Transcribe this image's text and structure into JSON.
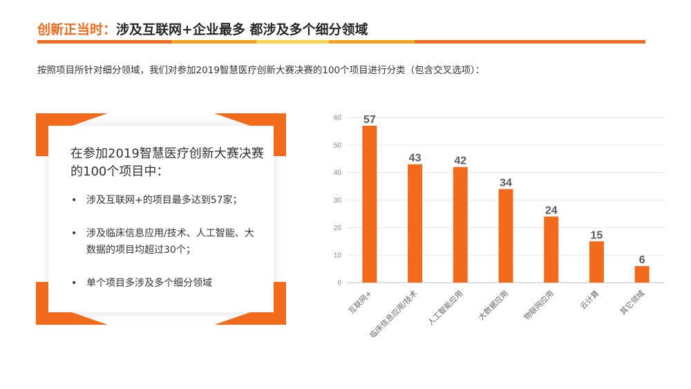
{
  "header": {
    "title_accent": "创新正当时：",
    "title_rest": "涉及互联网+企业最多 都涉及多个细分领域",
    "bar_colors": [
      "#f26b1d",
      "#f7a21b",
      "#fcd34d",
      "#f7a21b",
      "#f26b1d"
    ]
  },
  "subtitle": "按照项目所针对细分领域，我们对参加2019智慧医疗创新大赛决赛的100个项目进行分类（包含交叉选项）：",
  "card": {
    "heading": "在参加2019智慧医疗创新大赛决赛的100个项目中：",
    "bullets": [
      {
        "dot": "•",
        "text": "涉及互联网+的项目最多达到57家；"
      },
      {
        "dot": "•",
        "text": "涉及临床信息应用/技术、人工智能、大数据的项目均超过30个；"
      },
      {
        "dot": "•",
        "text": "单个项目多涉及多个细分领域"
      }
    ],
    "frame_color": "#f26b1d"
  },
  "chart_data": {
    "type": "bar",
    "categories": [
      "互联网+",
      "临床信息应用/技术",
      "人工智能应用",
      "大数据应用",
      "物联网应用",
      "云计算",
      "其它领域"
    ],
    "values": [
      57,
      43,
      42,
      34,
      24,
      15,
      6
    ],
    "ylim": [
      0,
      60
    ],
    "yticks": [
      0,
      10,
      20,
      30,
      40,
      50,
      60
    ],
    "grid": true,
    "bar_color": "#f26b1d"
  }
}
